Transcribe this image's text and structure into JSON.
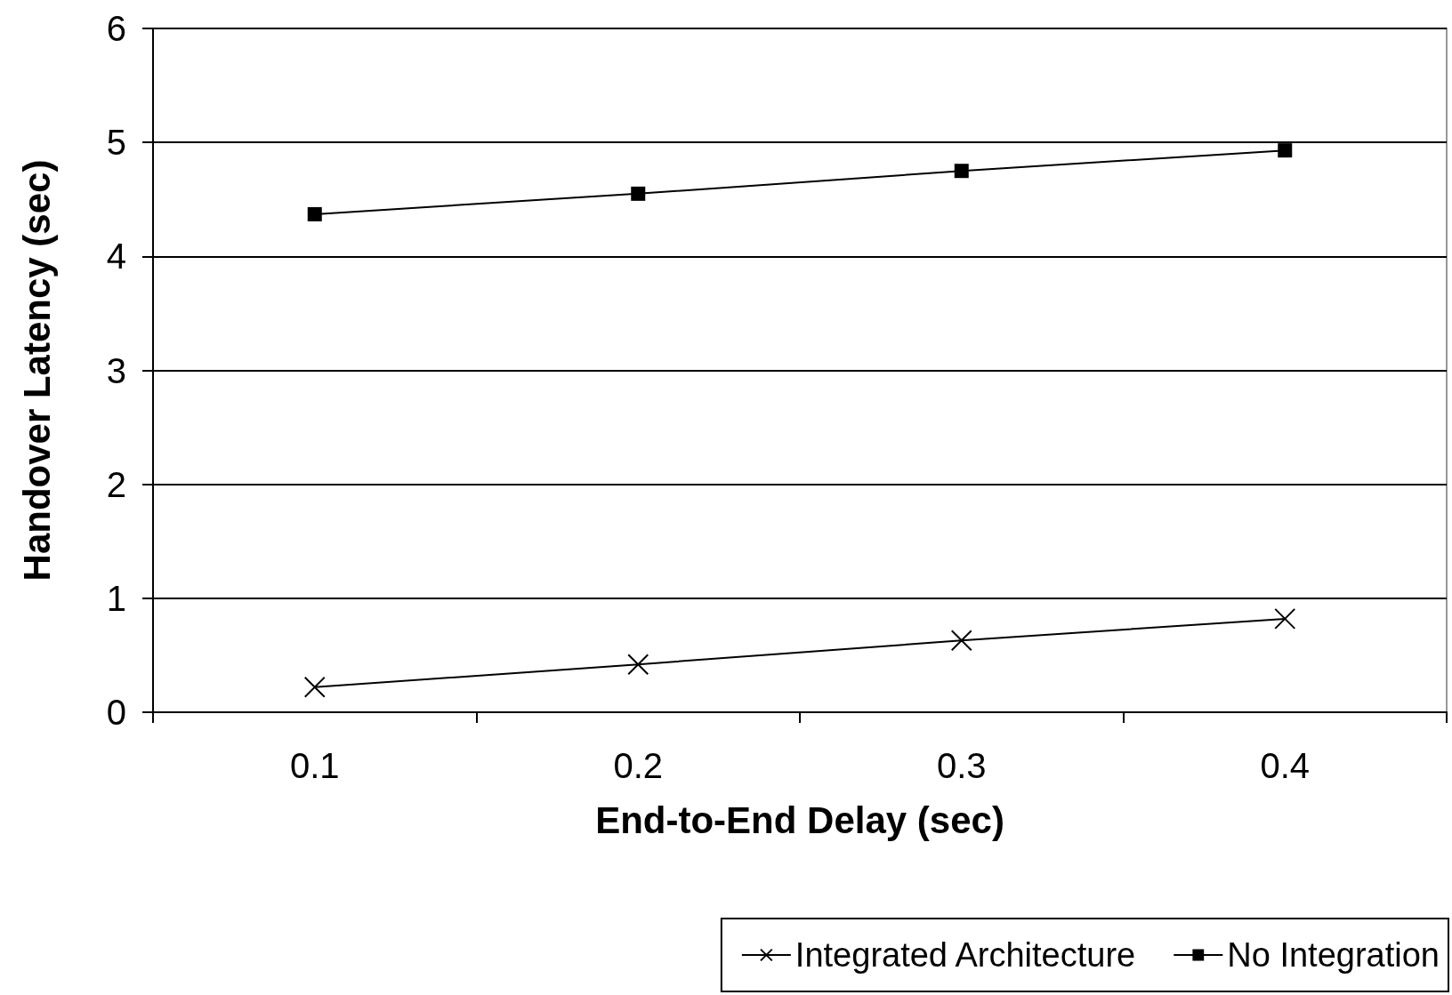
{
  "chart_data": {
    "type": "line",
    "xlabel": "End-to-End Delay (sec)",
    "ylabel": "Handover Latency (sec)",
    "categories": [
      "0.1",
      "0.2",
      "0.3",
      "0.4"
    ],
    "series": [
      {
        "name": "Integrated Architecture",
        "color": "#000000",
        "marker": "cross",
        "values": [
          0.22,
          0.42,
          0.63,
          0.82
        ]
      },
      {
        "name": "No Integration",
        "color": "#000000",
        "marker": "square",
        "values": [
          4.37,
          4.55,
          4.75,
          4.93
        ]
      }
    ],
    "ylim": [
      0,
      6
    ],
    "yticks": [
      0,
      1,
      2,
      3,
      4,
      5,
      6
    ],
    "grid": "y",
    "legend": "bottom right",
    "line_style": "solid"
  }
}
